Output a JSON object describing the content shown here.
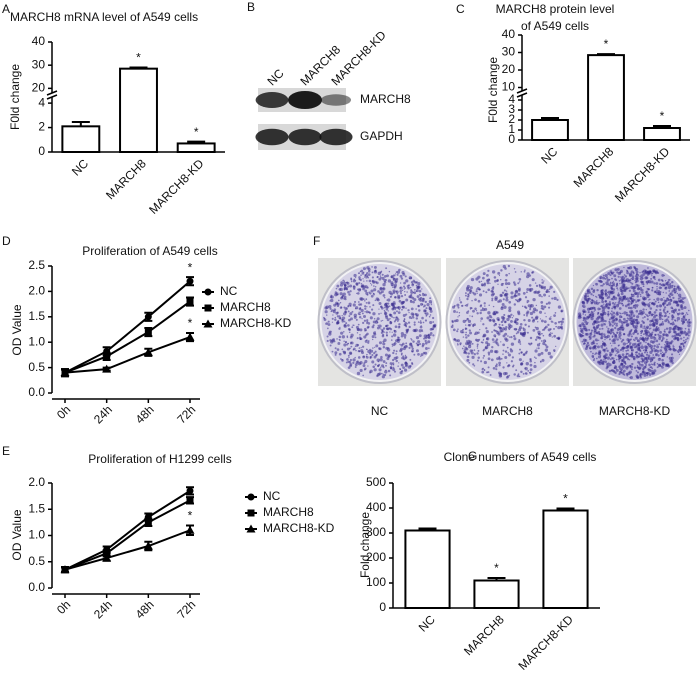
{
  "chart_data": [
    {
      "type": "bar",
      "panel": "A",
      "title": "MARCH8 mRNA level of A549 cells",
      "ylabel": "F0ld change",
      "categories": [
        "NC",
        "MARCH8",
        "MARCH8-KD"
      ],
      "values": [
        2.1,
        28.5,
        0.7
      ],
      "errors": [
        0.35,
        0.5,
        0.15
      ],
      "ylim": [
        0,
        40
      ],
      "ybreak": [
        4.5,
        18
      ],
      "yticks": [
        0,
        2,
        4,
        20,
        30,
        40
      ],
      "annotations": [
        {
          "text": "*",
          "index": 1
        },
        {
          "text": "*",
          "index": 2
        }
      ]
    },
    {
      "type": "blot",
      "panel": "B",
      "lanes": [
        "NC",
        "MARCH8",
        "MARCH8-KD"
      ],
      "bands": [
        "MARCH8",
        "GAPDH"
      ]
    },
    {
      "type": "bar",
      "panel": "C",
      "title": [
        "MARCH8 protein level",
        "of A549 cells"
      ],
      "ylabel": "F0ld change",
      "categories": [
        "NC",
        "MARCH8",
        "MARCH8-KD"
      ],
      "values": [
        2.0,
        28.5,
        1.2
      ],
      "errors": [
        0.2,
        0.6,
        0.2
      ],
      "ylim": [
        0,
        40
      ],
      "ybreak": [
        4.5,
        8
      ],
      "yticks": [
        0,
        1,
        2,
        3,
        4,
        10,
        20,
        30,
        40
      ],
      "annotations": [
        {
          "text": "*",
          "index": 1
        },
        {
          "text": "*",
          "index": 2
        }
      ]
    },
    {
      "type": "line",
      "panel": "D",
      "title": "Proliferation of A549 cells",
      "ylabel": "OD Value",
      "categories": [
        "0h",
        "24h",
        "48h",
        "72h"
      ],
      "series": [
        {
          "name": "NC",
          "marker": "circle",
          "values": [
            0.4,
            0.82,
            1.5,
            2.2
          ],
          "errors": [
            0.07,
            0.08,
            0.08,
            0.08
          ]
        },
        {
          "name": "MARCH8",
          "marker": "square",
          "values": [
            0.4,
            0.72,
            1.2,
            1.8
          ],
          "errors": [
            0.07,
            0.07,
            0.08,
            0.08
          ]
        },
        {
          "name": "MARCH8-KD",
          "marker": "triangle",
          "values": [
            0.4,
            0.47,
            0.8,
            1.1
          ],
          "errors": [
            0.06,
            0.03,
            0.07,
            0.08
          ]
        }
      ],
      "ylim": [
        0,
        2.5
      ],
      "yticks": [
        {
          "value": 0,
          "label": "0.0"
        },
        0.5,
        {
          "value": 1,
          "label": "1.0"
        },
        1.5,
        {
          "value": 2,
          "label": "2.0"
        },
        2.5
      ],
      "annotations": [
        {
          "text": "*",
          "series": 0,
          "index": 3
        },
        {
          "text": "*",
          "series": 2,
          "index": 3
        }
      ]
    },
    {
      "type": "line",
      "panel": "E",
      "title": "Proliferation of H1299 cells",
      "ylabel": "OD Value",
      "categories": [
        "0h",
        "24h",
        "48h",
        "72h"
      ],
      "series": [
        {
          "name": "NC",
          "marker": "circle",
          "values": [
            0.35,
            0.73,
            1.35,
            1.85
          ],
          "errors": [
            0.05,
            0.06,
            0.07,
            0.07
          ]
        },
        {
          "name": "MARCH8",
          "marker": "square",
          "values": [
            0.35,
            0.66,
            1.25,
            1.67
          ],
          "errors": [
            0.05,
            0.06,
            0.07,
            0.06
          ]
        },
        {
          "name": "MARCH8-KD",
          "marker": "triangle",
          "values": [
            0.35,
            0.57,
            0.8,
            1.1
          ],
          "errors": [
            0.04,
            0.05,
            0.08,
            0.09
          ]
        }
      ],
      "ylim": [
        0,
        2.0
      ],
      "yticks": [
        {
          "value": 0,
          "label": "0.0"
        },
        0.5,
        {
          "value": 1,
          "label": "1.0"
        },
        1.5,
        {
          "value": 2,
          "label": "2.0"
        }
      ],
      "annotations": [
        {
          "text": "*",
          "series": 2,
          "index": 3
        }
      ]
    },
    {
      "type": "image",
      "panel": "F",
      "title": "A549",
      "labels": [
        "NC",
        "MARCH8",
        "MARCH8-KD"
      ]
    },
    {
      "type": "bar",
      "panel": "G",
      "title": "Clone numbers of A549 cells",
      "ylabel": "Fold change",
      "categories": [
        "NC",
        "MARCH8",
        "MARCH8-KD"
      ],
      "values": [
        310,
        110,
        390
      ],
      "errors": [
        8,
        10,
        8
      ],
      "ylim": [
        0,
        500
      ],
      "yticks": [
        0,
        100,
        200,
        300,
        400,
        500
      ],
      "annotations": [
        {
          "text": "*",
          "index": 1
        },
        {
          "text": "*",
          "index": 2
        }
      ]
    }
  ]
}
